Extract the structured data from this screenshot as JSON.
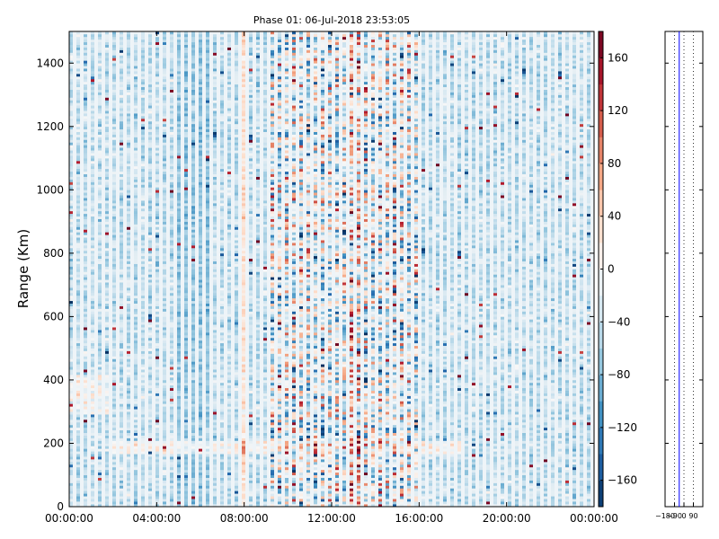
{
  "chart_data": [
    {
      "type": "heatmap",
      "title": "Phase 01: 06-Jul-2018 23:53:05",
      "xlabel": "",
      "ylabel": "Range (Km)",
      "x_tick_labels": [
        "00:00:00",
        "04:00:00",
        "08:00:00",
        "12:00:00",
        "16:00:00",
        "20:00:00",
        "00:00:00"
      ],
      "x_tick_hours": [
        0,
        4,
        8,
        12,
        16,
        20,
        24
      ],
      "xlim_hours": [
        0,
        24
      ],
      "y_ticks": [
        0,
        200,
        400,
        600,
        800,
        1000,
        1200,
        1400
      ],
      "ylim": [
        0,
        1500
      ],
      "colorbar": {
        "colormap": "RdBu_r",
        "vmin": -180,
        "vmax": 180,
        "ticks": [
          -160,
          -120,
          -80,
          -40,
          0,
          40,
          80,
          120,
          160
        ],
        "tick_labels": [
          "−160",
          "−120",
          "−80",
          "−40",
          "0",
          "40",
          "80",
          "120",
          "160"
        ]
      },
      "grid": false,
      "colors": {
        "negative": "#053061",
        "positive": "#67001f",
        "neutral": "#f7f7f7",
        "sidepanel_line": "#0000ff"
      }
    },
    {
      "type": "line",
      "xlim": [
        -180,
        180
      ],
      "x_ticks": [
        -180,
        -90,
        0,
        90
      ],
      "x_tick_labels": [
        "−180",
        "−90",
        "0",
        "90"
      ],
      "ylim": [
        0,
        1500
      ],
      "y_ticks": [
        0,
        200,
        400,
        600,
        800,
        1000,
        1200,
        1400
      ],
      "vertical_lines": [
        {
          "x": -45,
          "style": "solid",
          "color": "#0000ff"
        },
        {
          "x": -90,
          "style": "dotted",
          "color": "#333333"
        },
        {
          "x": 0,
          "style": "dotted",
          "color": "#333333"
        },
        {
          "x": 90,
          "style": "dotted",
          "color": "#333333"
        }
      ]
    }
  ]
}
